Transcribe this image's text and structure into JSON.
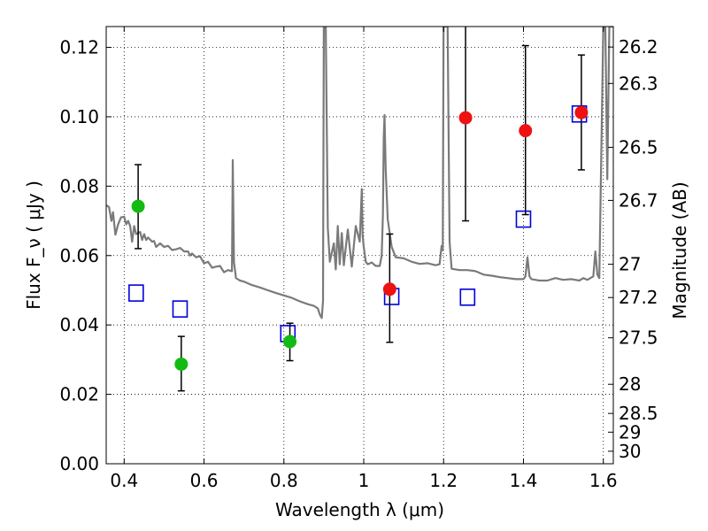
{
  "chart_data": {
    "type": "scatter",
    "xlabel": "Wavelength  λ (μm)",
    "ylabel": "Flux  F_ν  ( μJy )",
    "y2label": "Magnitude (AB)",
    "xlim": [
      0.355,
      1.625
    ],
    "ylim": [
      0.0,
      0.126
    ],
    "grid": true,
    "x_ticks": [
      0.4,
      0.6,
      0.8,
      1.0,
      1.2,
      1.4,
      1.6
    ],
    "x_tick_labels": [
      "0.4",
      "0.6",
      "0.8",
      "1",
      "1.2",
      "1.4",
      "1.6"
    ],
    "y_ticks": [
      0.0,
      0.02,
      0.04,
      0.06,
      0.08,
      0.1,
      0.12
    ],
    "y_tick_labels": [
      "0.00",
      "0.02",
      "0.04",
      "0.06",
      "0.08",
      "0.10",
      "0.12"
    ],
    "y2_tick_labels": [
      "26.2",
      "26.3",
      "26.5",
      "26.7",
      "27",
      "27.2",
      "27.5",
      "28",
      "28.5",
      "29",
      "30"
    ],
    "y2_tick_flux": [
      0.1201,
      0.1096,
      0.0912,
      0.0759,
      0.0575,
      0.0479,
      0.0363,
      0.0229,
      0.0145,
      0.0091,
      0.0036
    ],
    "colors": {
      "model": "#7a7a7a",
      "green": "#11bb11",
      "red": "#ee1111",
      "box": "#0000dd",
      "errorbar": "#000000"
    },
    "series": [
      {
        "marker": "line",
        "x": [
          0.355,
          0.362,
          0.368,
          0.372,
          0.378,
          0.385,
          0.392,
          0.4,
          0.405,
          0.41,
          0.415,
          0.42,
          0.425,
          0.43,
          0.44,
          0.445,
          0.45,
          0.455,
          0.46,
          0.47,
          0.475,
          0.48,
          0.49,
          0.5,
          0.51,
          0.52,
          0.53,
          0.54,
          0.55,
          0.56,
          0.565,
          0.57,
          0.58,
          0.59,
          0.6,
          0.61,
          0.62,
          0.63,
          0.64,
          0.65,
          0.66,
          0.67,
          0.672,
          0.675,
          0.678,
          0.68,
          0.69,
          0.7,
          0.72,
          0.74,
          0.76,
          0.78,
          0.8,
          0.82,
          0.84,
          0.86,
          0.875,
          0.885,
          0.89,
          0.895,
          0.898,
          0.9,
          0.905,
          0.91,
          0.915,
          0.925,
          0.93,
          0.935,
          0.94,
          0.945,
          0.95,
          0.96,
          0.97,
          0.98,
          0.99,
          0.995,
          0.997,
          1.0,
          1.005,
          1.01,
          1.02,
          1.03,
          1.04,
          1.045,
          1.048,
          1.05,
          1.052,
          1.055,
          1.06,
          1.07,
          1.08,
          1.1,
          1.12,
          1.14,
          1.16,
          1.18,
          1.19,
          1.195,
          1.198,
          1.2,
          1.21,
          1.215,
          1.22,
          1.24,
          1.26,
          1.28,
          1.3,
          1.32,
          1.34,
          1.36,
          1.38,
          1.4,
          1.405,
          1.41,
          1.415,
          1.42,
          1.44,
          1.46,
          1.48,
          1.5,
          1.52,
          1.54,
          1.55,
          1.56,
          1.575,
          1.58,
          1.585,
          1.59,
          1.6,
          1.605,
          1.61,
          1.615,
          1.62,
          1.625
        ],
        "y": [
          0.0745,
          0.074,
          0.07,
          0.0725,
          0.066,
          0.069,
          0.071,
          0.0712,
          0.069,
          0.07,
          0.0685,
          0.064,
          0.0685,
          0.0662,
          0.0668,
          0.0645,
          0.0662,
          0.0645,
          0.0652,
          0.064,
          0.0642,
          0.0625,
          0.0635,
          0.0625,
          0.0628,
          0.0616,
          0.0618,
          0.0622,
          0.0612,
          0.0612,
          0.06,
          0.0606,
          0.0595,
          0.0598,
          0.0578,
          0.0582,
          0.0565,
          0.0568,
          0.057,
          0.0552,
          0.0558,
          0.0555,
          0.0875,
          0.058,
          0.0555,
          0.0535,
          0.0528,
          0.0525,
          0.0515,
          0.0508,
          0.05,
          0.0492,
          0.0485,
          0.0478,
          0.0468,
          0.046,
          0.0455,
          0.0448,
          0.043,
          0.042,
          0.047,
          0.126,
          0.126,
          0.068,
          0.0582,
          0.0635,
          0.056,
          0.0685,
          0.0575,
          0.0665,
          0.0572,
          0.0675,
          0.0568,
          0.0685,
          0.064,
          0.0792,
          0.066,
          0.0625,
          0.0582,
          0.0575,
          0.058,
          0.057,
          0.057,
          0.06,
          0.072,
          0.094,
          0.1005,
          0.085,
          0.0705,
          0.0625,
          0.0595,
          0.0592,
          0.0582,
          0.0576,
          0.0578,
          0.0572,
          0.0575,
          0.0628,
          0.0615,
          0.126,
          0.126,
          0.064,
          0.0562,
          0.0558,
          0.0558,
          0.0555,
          0.0545,
          0.0542,
          0.0538,
          0.0535,
          0.0532,
          0.0532,
          0.054,
          0.0595,
          0.054,
          0.0532,
          0.0528,
          0.0528,
          0.0535,
          0.053,
          0.0532,
          0.0528,
          0.0535,
          0.053,
          0.054,
          0.0612,
          0.0545,
          0.0535,
          0.126,
          0.126,
          0.082,
          0.126,
          0.126,
          0.126
        ]
      },
      {
        "marker": "circle",
        "x": [
          0.435,
          0.543,
          0.815
        ],
        "y": [
          0.0742,
          0.0287,
          0.0352
        ],
        "yerr_low": [
          0.062,
          0.021,
          0.0297
        ],
        "yerr_high": [
          0.0862,
          0.0367,
          0.0405
        ]
      },
      {
        "marker": "circle",
        "x": [
          1.065,
          1.255,
          1.405,
          1.545
        ],
        "y": [
          0.0503,
          0.0997,
          0.096,
          0.1012
        ],
        "yerr_low": [
          0.035,
          0.07,
          0.0718,
          0.0847
        ],
        "yerr_high": [
          0.0662,
          0.126,
          0.1205,
          0.1178
        ]
      },
      {
        "marker": "square",
        "x": [
          0.43,
          0.54,
          0.81,
          1.07,
          1.26,
          1.4,
          1.54
        ],
        "y": [
          0.0492,
          0.0446,
          0.0375,
          0.0482,
          0.048,
          0.0705,
          0.1008
        ]
      }
    ]
  }
}
